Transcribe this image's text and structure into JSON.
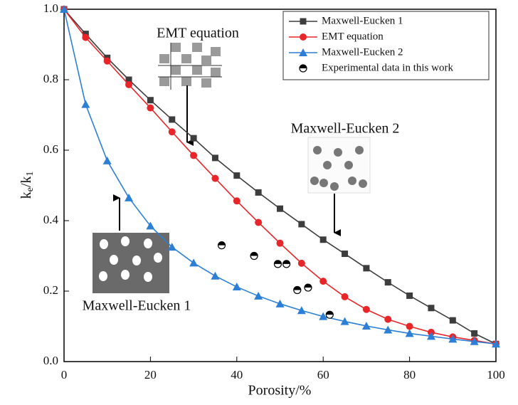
{
  "chart_data": {
    "type": "line",
    "xlabel": "Porosity/%",
    "ylabel": [
      "k",
      "e",
      "/k",
      "1"
    ],
    "x": [
      0,
      5,
      10,
      15,
      20,
      25,
      30,
      35,
      40,
      45,
      50,
      55,
      60,
      65,
      70,
      75,
      80,
      85,
      90,
      95,
      100
    ],
    "xlim": [
      0,
      100
    ],
    "xticks": [
      0,
      20,
      40,
      60,
      80,
      100
    ],
    "ylim": [
      0,
      1
    ],
    "yticks": [
      {
        "value": 0,
        "label": "0.0"
      },
      0.2,
      0.4,
      0.6,
      0.8,
      {
        "value": 1,
        "label": "1.0"
      }
    ],
    "legend": "upper right",
    "series": [
      {
        "name": "Maxwell-Eucken 1",
        "color": "#3d3d3d",
        "marker": "square",
        "values": [
          1.0,
          0.93,
          0.862,
          0.8,
          0.742,
          0.687,
          0.634,
          0.578,
          0.528,
          0.48,
          0.434,
          0.39,
          0.346,
          0.306,
          0.265,
          0.225,
          0.187,
          0.152,
          0.117,
          0.08,
          0.05
        ]
      },
      {
        "name": "EMT equation",
        "color": "#e8262a",
        "marker": "circle",
        "values": [
          1.0,
          0.92,
          0.853,
          0.786,
          0.72,
          0.652,
          0.585,
          0.52,
          0.456,
          0.395,
          0.336,
          0.279,
          0.228,
          0.184,
          0.148,
          0.12,
          0.1,
          0.083,
          0.07,
          0.06,
          0.05
        ]
      },
      {
        "name": "Maxwell-Eucken 2",
        "color": "#2c7fd6",
        "marker": "triangle",
        "values": [
          1.0,
          0.73,
          0.57,
          0.465,
          0.385,
          0.325,
          0.28,
          0.243,
          0.212,
          0.186,
          0.164,
          0.145,
          0.128,
          0.114,
          0.101,
          0.09,
          0.08,
          0.072,
          0.064,
          0.057,
          0.05
        ]
      },
      {
        "name": "Experimental data in this work",
        "color": "#000000",
        "marker": "half",
        "x": [
          36.5,
          44,
          49.5,
          51.5,
          54,
          56.5,
          61.5
        ],
        "values": [
          0.33,
          0.3,
          0.277,
          0.277,
          0.203,
          0.21,
          0.133
        ]
      }
    ],
    "annotations": [
      "EMT equation",
      "Maxwell-Eucken 2",
      "Maxwell-Eucken 1"
    ]
  }
}
